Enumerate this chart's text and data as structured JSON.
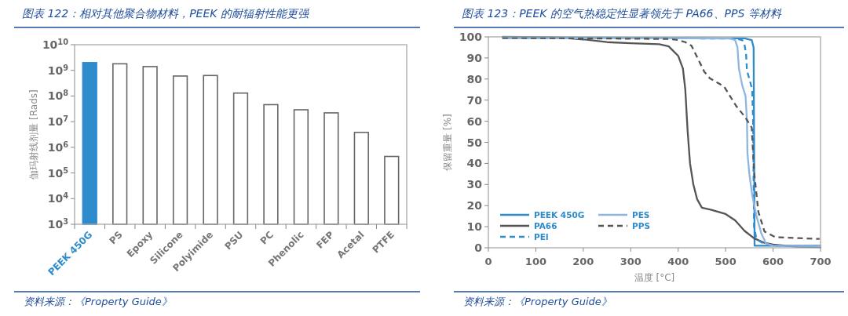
{
  "chart_data": [
    {
      "type": "bar",
      "title": "图表 122：相对其他聚合物材料，PEEK 的耐辐射性能更强",
      "ylabel": "伽玛射线剂量 [Rads]",
      "categories": [
        "PEEK 450G",
        "PS",
        "Epoxy",
        "Silicone",
        "Polyimide",
        "PSU",
        "PC",
        "Phenolic",
        "FEP",
        "Acetal",
        "PTFE"
      ],
      "values": [
        2000000000,
        1800000000,
        1400000000,
        600000000,
        630000000,
        130000000,
        46000000,
        29000000,
        22000000,
        3800000,
        440000
      ],
      "colors": [
        "#2e8bcc",
        "#ffffff",
        "#ffffff",
        "#ffffff",
        "#ffffff",
        "#ffffff",
        "#ffffff",
        "#ffffff",
        "#ffffff",
        "#ffffff",
        "#ffffff"
      ],
      "log": "y",
      "ylim": [
        1000,
        10000000000
      ],
      "yticks": [
        {
          "value": 1000,
          "label": "10$^{3}$"
        },
        {
          "value": 10000,
          "label": "10$^{4}$"
        },
        {
          "value": 100000,
          "label": "10$^{5}$"
        },
        {
          "value": 1000000,
          "label": "10$^{6}$"
        },
        {
          "value": 10000000,
          "label": "10$^{7}$"
        },
        {
          "value": 100000000,
          "label": "10$^{8}$"
        },
        {
          "value": 1000000000,
          "label": "10$^{9}$"
        },
        {
          "value": 10000000000,
          "label": "10$^{10}$"
        }
      ],
      "annotations": [
        "资料来源：《Property Guide》"
      ]
    },
    {
      "type": "line",
      "title": "图表 123：PEEK 的空气热稳定性显著领先于 PA66、PPS 等材料",
      "xlabel": "温度 [°C]",
      "ylabel": "保留重量 [%]",
      "xlim": [
        0,
        700
      ],
      "xticks": [
        0,
        100,
        200,
        300,
        400,
        500,
        600,
        700
      ],
      "ylim": [
        0,
        100
      ],
      "yticks": [
        0,
        10,
        20,
        30,
        40,
        50,
        60,
        70,
        80,
        90,
        100
      ],
      "legend": "bottom left",
      "series": [
        {
          "name": "PEEK 450G",
          "color": "#2e8bcc",
          "line_style": "solid",
          "x": [
            30,
            200,
            400,
            540,
            555,
            559,
            560,
            561,
            700
          ],
          "values": [
            100,
            99.7,
            99.5,
            99.3,
            98.5,
            95,
            50,
            1,
            1
          ]
        },
        {
          "name": "PA66",
          "color": "#555555",
          "line_style": "solid",
          "x": [
            30,
            150,
            200,
            250,
            300,
            360,
            380,
            400,
            410,
            415,
            420,
            425,
            432,
            440,
            450,
            470,
            500,
            520,
            540,
            560,
            580,
            600,
            650,
            700
          ],
          "values": [
            99.8,
            99.7,
            98.8,
            97.5,
            97,
            96.5,
            95.5,
            91,
            85,
            75,
            55,
            40,
            30,
            23,
            19,
            18,
            16,
            13,
            8,
            4.5,
            2.5,
            1.5,
            0.5,
            0.3
          ]
        },
        {
          "name": "PEI",
          "color": "#2e8bcc",
          "line_style": "dashed",
          "x": [
            30,
            400,
            520,
            535,
            540,
            543,
            545,
            550,
            556,
            558,
            559,
            560,
            565,
            580,
            600,
            700
          ],
          "values": [
            99.5,
            99.3,
            99.2,
            98.5,
            96,
            92,
            84,
            80,
            75,
            60,
            30,
            10,
            4,
            2,
            1,
            0.8
          ]
        },
        {
          "name": "PES",
          "color": "#8fb6e0",
          "line_style": "solid",
          "x": [
            30,
            400,
            510,
            520,
            525,
            528,
            535,
            542,
            545,
            546,
            550,
            556,
            565,
            575,
            585,
            600,
            700
          ],
          "values": [
            99.3,
            99.3,
            99.2,
            98.5,
            95,
            85,
            77,
            72,
            60,
            45,
            35,
            25,
            15,
            7,
            2,
            1,
            0.8
          ]
        },
        {
          "name": "PPS",
          "color": "#555555",
          "line_style": "dashed",
          "x": [
            30,
            200,
            380,
            400,
            415,
            428,
            455,
            467,
            497,
            522,
            541,
            555,
            560,
            569,
            582,
            605,
            698
          ],
          "values": [
            99.5,
            99.3,
            99,
            98.5,
            97.5,
            95.8,
            83.5,
            80.3,
            76.4,
            67.3,
            62,
            57,
            36,
            17,
            7.7,
            5,
            4.2
          ]
        }
      ],
      "annotations": [
        "资料来源：《Property Guide》"
      ]
    }
  ]
}
